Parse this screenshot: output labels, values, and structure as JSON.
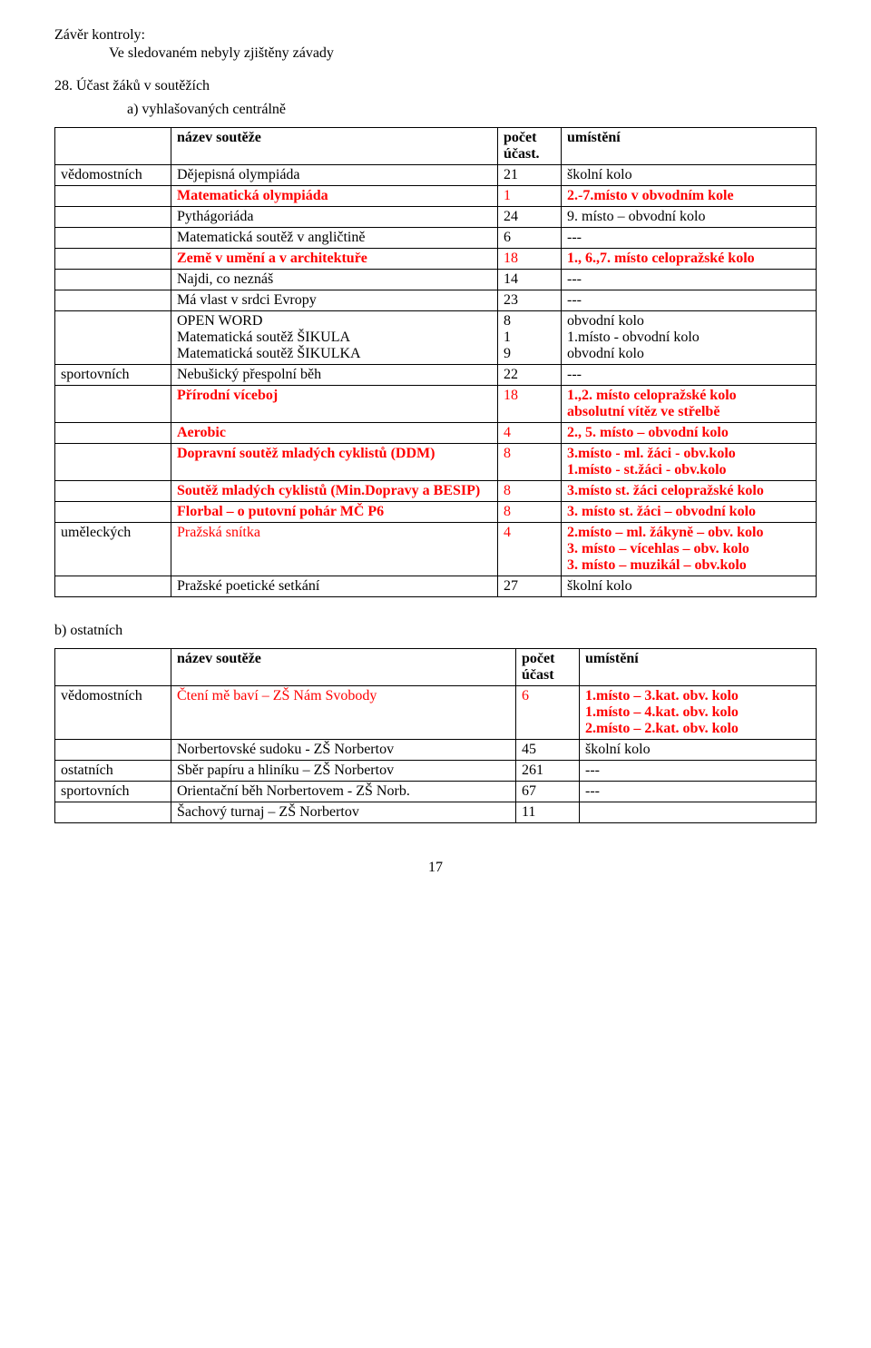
{
  "header": {
    "line1": "Závěr kontroly:",
    "line2": "Ve sledovaném nebyly zjištěny závady",
    "item_number": "28.  Účast žáků v soutěžích",
    "sub_a": "a)   vyhlašovaných centrálně"
  },
  "tableA": {
    "headers": {
      "cat": "",
      "name": "název soutěže",
      "count": "počet účast.",
      "place": "umístění"
    },
    "rows": [
      {
        "cat": "vědomostních",
        "name": "Dějepisná olympiáda",
        "count": "21",
        "place": "školní kolo"
      },
      {
        "cat": "",
        "name": "Matematická olympiáda",
        "count": "1",
        "place": "2.-7.místo v obvodním kole",
        "red": true,
        "bold": true
      },
      {
        "cat": "",
        "name": "Pythágoriáda",
        "count": "24",
        "place": "9. místo – obvodní kolo"
      },
      {
        "cat": "",
        "name": "Matematická soutěž v angličtině",
        "count": "6",
        "place": "---"
      },
      {
        "cat": "",
        "name": "Země v umění a v architektuře",
        "count": "18",
        "place": "1., 6.,7. místo celopražské kolo",
        "red": true,
        "bold": true
      },
      {
        "cat": "",
        "name": "Najdi, co neznáš",
        "count": "14",
        "place": "---"
      },
      {
        "cat": "",
        "name": "Má vlast v srdci Evropy",
        "count": "23",
        "place": "---"
      },
      {
        "cat": "",
        "name": "OPEN WORD\nMatematická soutěž ŠIKULA\nMatematická soutěž ŠIKULKA",
        "count": "8\n1\n9",
        "place": "obvodní kolo\n1.místo - obvodní kolo\nobvodní kolo"
      },
      {
        "cat": "sportovních",
        "name": "Nebušický přespolní běh",
        "count": "22",
        "place": "---"
      },
      {
        "cat": "",
        "name": "Přírodní víceboj",
        "count": "18",
        "place": "1.,2. místo celopražské kolo\nabsolutní vítěz ve střelbě",
        "red": true,
        "bold": true
      },
      {
        "cat": "",
        "name": "Aerobic",
        "count": "4",
        "place": "2., 5. místo – obvodní kolo",
        "red": true,
        "bold": true
      },
      {
        "cat": "",
        "name": "Dopravní soutěž mladých cyklistů (DDM)",
        "count": "8",
        "place": "3.místo - ml. žáci - obv.kolo\n1.místo - st.žáci - obv.kolo",
        "red": true,
        "bold": true
      },
      {
        "cat": "",
        "name": "Soutěž mladých cyklistů (Min.Dopravy a BESIP)",
        "count": "8",
        "place": "3.místo st. žáci celopražské kolo",
        "red": true,
        "bold": true
      },
      {
        "cat": "",
        "name": "Florbal – o putovní pohár MČ P6",
        "count": "8",
        "place": "3. místo st. žáci – obvodní kolo",
        "red": true,
        "bold": true
      },
      {
        "cat": "uměleckých",
        "name": "Pražská snítka",
        "count": "4",
        "place": "2.místo – ml. žákyně – obv. kolo\n3. místo – vícehlas – obv. kolo\n3. místo – muzikál – obv.kolo",
        "red": true,
        "bold": true,
        "catBlack": true,
        "plainName": true
      },
      {
        "cat": "",
        "name": "Pražské poetické setkání",
        "count": "27",
        "place": "školní kolo"
      }
    ]
  },
  "sectionB": {
    "label": "b) ostatních"
  },
  "tableB": {
    "headers": {
      "cat": "",
      "name": "název soutěže",
      "count": "počet účast",
      "place": "umístění"
    },
    "rows": [
      {
        "cat": "vědomostních",
        "name": "Čtení mě baví – ZŠ Nám Svobody",
        "count": "6",
        "place": "1.místo – 3.kat. obv. kolo\n1.místo – 4.kat. obv. kolo\n2.místo – 2.kat. obv. kolo",
        "red": true,
        "bold": true,
        "catBlack": true,
        "plainName": true
      },
      {
        "cat": "",
        "name": "Norbertovské sudoku   - ZŠ Norbertov",
        "count": "45",
        "place": "školní kolo"
      },
      {
        "cat": "ostatních",
        "name": "Sběr papíru a hliníku – ZŠ Norbertov",
        "count": "261",
        "place": "---"
      },
      {
        "cat": "sportovních",
        "name": "Orientační běh Norbertovem - ZŠ Norb.",
        "count": "67",
        "place": "---"
      },
      {
        "cat": "",
        "name": "Šachový turnaj – ZŠ Norbertov",
        "count": "11",
        "place": ""
      }
    ]
  },
  "page_number": "17"
}
